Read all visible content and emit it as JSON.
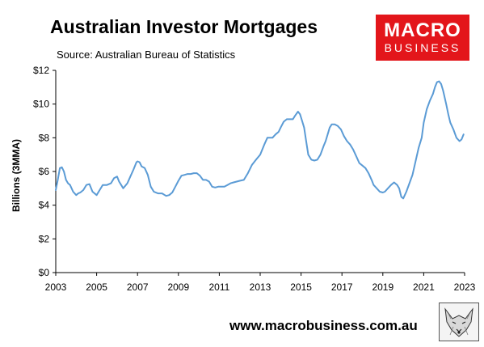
{
  "header": {
    "title": "Australian Investor Mortgages",
    "subtitle": "Source: Australian Bureau of Statistics"
  },
  "logo": {
    "line1": "MACRO",
    "line2": "BUSINESS",
    "bg_color": "#e3161b"
  },
  "footer": {
    "url": "www.macrobusiness.com.au",
    "mascot_icon": "fox-sketch-icon"
  },
  "chart_data": {
    "type": "line",
    "title": "Australian Investor Mortgages",
    "subtitle": "Source: Australian Bureau of Statistics",
    "xlabel": "",
    "ylabel": "Billions (3MMA)",
    "xlim": [
      2003,
      2023
    ],
    "ylim": [
      0,
      12
    ],
    "x_ticks": [
      "2003",
      "2005",
      "2007",
      "2009",
      "2011",
      "2013",
      "2015",
      "2017",
      "2019",
      "2021",
      "2023"
    ],
    "y_ticks": [
      "$0",
      "$2",
      "$4",
      "$6",
      "$8",
      "$10",
      "$12"
    ],
    "grid": false,
    "legend": "none",
    "line_color": "#5b9bd5",
    "series": [
      {
        "x": [
          2003.0,
          2003.1,
          2003.2,
          2003.3,
          2003.4,
          2003.5,
          2003.6,
          2003.7,
          2003.85,
          2004.0,
          2004.1,
          2004.2,
          2004.35,
          2004.5,
          2004.65,
          2004.8,
          2005.0,
          2005.15,
          2005.3,
          2005.5,
          2005.7,
          2005.85,
          2006.0,
          2006.1,
          2006.2,
          2006.3,
          2006.4,
          2006.5,
          2006.65,
          2006.8,
          2006.95,
          2007.0,
          2007.1,
          2007.2,
          2007.35,
          2007.5,
          2007.65,
          2007.8,
          2008.0,
          2008.2,
          2008.4,
          2008.55,
          2008.7,
          2008.85,
          2009.0,
          2009.15,
          2009.3,
          2009.45,
          2009.6,
          2009.75,
          2009.9,
          2010.05,
          2010.2,
          2010.35,
          2010.5,
          2010.65,
          2010.8,
          2010.95,
          2011.1,
          2011.25,
          2011.4,
          2011.55,
          2011.7,
          2011.85,
          2012.0,
          2012.2,
          2012.4,
          2012.6,
          2012.8,
          2013.0,
          2013.2,
          2013.35,
          2013.5,
          2013.6,
          2013.75,
          2013.9,
          2014.0,
          2014.15,
          2014.3,
          2014.45,
          2014.6,
          2014.7,
          2014.85,
          2014.95,
          2015.05,
          2015.15,
          2015.25,
          2015.35,
          2015.5,
          2015.65,
          2015.8,
          2015.95,
          2016.1,
          2016.2,
          2016.3,
          2016.4,
          2016.5,
          2016.65,
          2016.8,
          2016.95,
          2017.1,
          2017.25,
          2017.4,
          2017.55,
          2017.7,
          2017.85,
          2018.0,
          2018.15,
          2018.3,
          2018.45,
          2018.55,
          2018.7,
          2018.85,
          2019.0,
          2019.1,
          2019.25,
          2019.4,
          2019.55,
          2019.7,
          2019.8,
          2019.9,
          2020.0,
          2020.15,
          2020.3,
          2020.45,
          2020.6,
          2020.75,
          2020.9,
          2021.0,
          2021.15,
          2021.3,
          2021.45,
          2021.55,
          2021.65,
          2021.75,
          2021.85,
          2021.95,
          2022.1,
          2022.2,
          2022.3,
          2022.45,
          2022.6,
          2022.75,
          2022.85,
          2022.95
        ],
        "y": [
          4.9,
          5.5,
          6.2,
          6.25,
          6.0,
          5.5,
          5.3,
          5.2,
          4.8,
          4.6,
          4.7,
          4.75,
          4.9,
          5.2,
          5.25,
          4.8,
          4.6,
          4.9,
          5.2,
          5.2,
          5.3,
          5.6,
          5.7,
          5.4,
          5.2,
          5.0,
          5.15,
          5.3,
          5.7,
          6.1,
          6.55,
          6.6,
          6.55,
          6.3,
          6.2,
          5.8,
          5.1,
          4.8,
          4.7,
          4.7,
          4.55,
          4.6,
          4.75,
          5.1,
          5.45,
          5.75,
          5.8,
          5.85,
          5.85,
          5.9,
          5.9,
          5.75,
          5.5,
          5.5,
          5.4,
          5.1,
          5.05,
          5.1,
          5.1,
          5.1,
          5.2,
          5.3,
          5.35,
          5.4,
          5.45,
          5.5,
          5.9,
          6.4,
          6.7,
          7.0,
          7.6,
          8.0,
          8.0,
          8.0,
          8.2,
          8.35,
          8.6,
          8.95,
          9.1,
          9.1,
          9.1,
          9.3,
          9.55,
          9.4,
          9.0,
          8.6,
          7.8,
          7.0,
          6.7,
          6.65,
          6.7,
          7.0,
          7.5,
          7.8,
          8.2,
          8.6,
          8.8,
          8.8,
          8.7,
          8.5,
          8.1,
          7.8,
          7.6,
          7.3,
          6.9,
          6.5,
          6.35,
          6.2,
          5.9,
          5.5,
          5.2,
          5.0,
          4.8,
          4.75,
          4.8,
          5.0,
          5.2,
          5.35,
          5.2,
          5.0,
          4.5,
          4.4,
          4.8,
          5.3,
          5.8,
          6.6,
          7.4,
          8.0,
          8.9,
          9.7,
          10.2,
          10.6,
          11.0,
          11.3,
          11.35,
          11.2,
          10.8,
          10.0,
          9.4,
          8.9,
          8.5,
          8.0,
          7.8,
          7.9,
          8.2
        ]
      }
    ]
  }
}
